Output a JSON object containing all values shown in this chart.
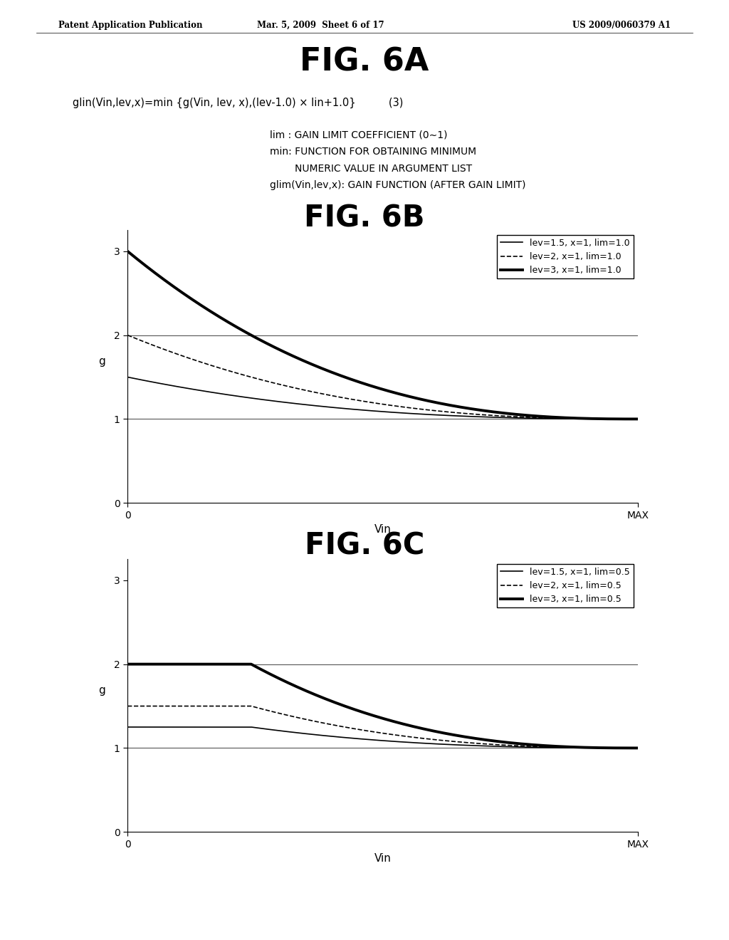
{
  "background_color": "#ffffff",
  "header_left": "Patent Application Publication",
  "header_mid": "Mar. 5, 2009  Sheet 6 of 17",
  "header_right": "US 2009/0060379 A1",
  "fig6a_title": "FIG. 6A",
  "formula": "glin(Vin,lev,x)=min {g(Vin, lev, x),(lev-1.0) × lin+1.0}          (3)",
  "def_line1": "lim : GAIN LIMIT COEFFICIENT (0∼1)",
  "def_line2": "min: FUNCTION FOR OBTAINING MINIMUM",
  "def_line3": "        NUMERIC VALUE IN ARGUMENT LIST",
  "def_line4": "glim(Vin,lev,x): GAIN FUNCTION (AFTER GAIN LIMIT)",
  "fig6b_title": "FIG. 6B",
  "fig6c_title": "FIG. 6C",
  "xlabel": "Vin",
  "ylabel": "g",
  "yticks": [
    0,
    1,
    2,
    3
  ],
  "fig6b_legend": [
    "lev=1.5, x=1, lim=1.0",
    "lev=2, x=1, lim=1.0",
    "lev=3, x=1, lim=1.0"
  ],
  "fig6c_legend": [
    "lev=1.5, x=1, lim=0.5",
    "lev=2, x=1, lim=0.5",
    "lev=3, x=1, lim=0.5"
  ]
}
